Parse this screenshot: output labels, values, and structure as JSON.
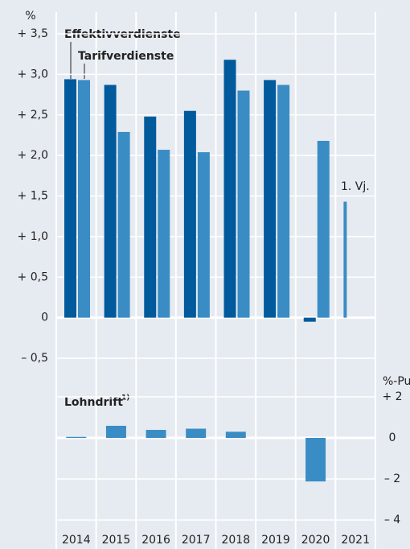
{
  "chart_data": [
    {
      "type": "bar",
      "y_unit": "%",
      "categories": [
        "2014",
        "2015",
        "2016",
        "2017",
        "2018",
        "2019",
        "2020",
        "2021"
      ],
      "series": [
        {
          "name": "Effektivverdienste",
          "color": "#005a9c",
          "values": [
            2.94,
            2.87,
            2.48,
            2.55,
            3.18,
            2.93,
            -0.05,
            null
          ]
        },
        {
          "name": "Tarifverdienste",
          "color": "#3a8cc4",
          "values": [
            2.93,
            2.29,
            2.07,
            2.04,
            2.8,
            2.87,
            2.18,
            1.43
          ]
        }
      ],
      "annotations": [
        "1. Vj."
      ],
      "ylim": [
        -0.5,
        3.5
      ],
      "yticks": [
        {
          "value": 3.5,
          "label": "+ 3,5"
        },
        {
          "value": 3.0,
          "label": "+ 3,0"
        },
        {
          "value": 2.5,
          "label": "+ 2,5"
        },
        {
          "value": 2.0,
          "label": "+ 2,0"
        },
        {
          "value": 1.5,
          "label": "+ 1,5"
        },
        {
          "value": 1.0,
          "label": "+ 1,0"
        },
        {
          "value": 0.5,
          "label": "+ 0,5"
        },
        0,
        {
          "value": -0.5,
          "label": "– 0,5"
        }
      ],
      "grid": true
    },
    {
      "type": "bar",
      "title": "Lohndrift",
      "title_note": "1)",
      "y_unit": "%-Punkte",
      "color": "#3a8cc4",
      "values": [
        0.05,
        0.59,
        0.39,
        0.45,
        0.3,
        null,
        -2.12,
        null
      ],
      "ylim": [
        -4,
        2
      ],
      "yticks": [
        {
          "value": 2,
          "label": "+ 2"
        },
        0,
        {
          "value": -2,
          "label": "– 2"
        },
        {
          "value": -4,
          "label": "– 4"
        }
      ],
      "grid": true
    }
  ]
}
